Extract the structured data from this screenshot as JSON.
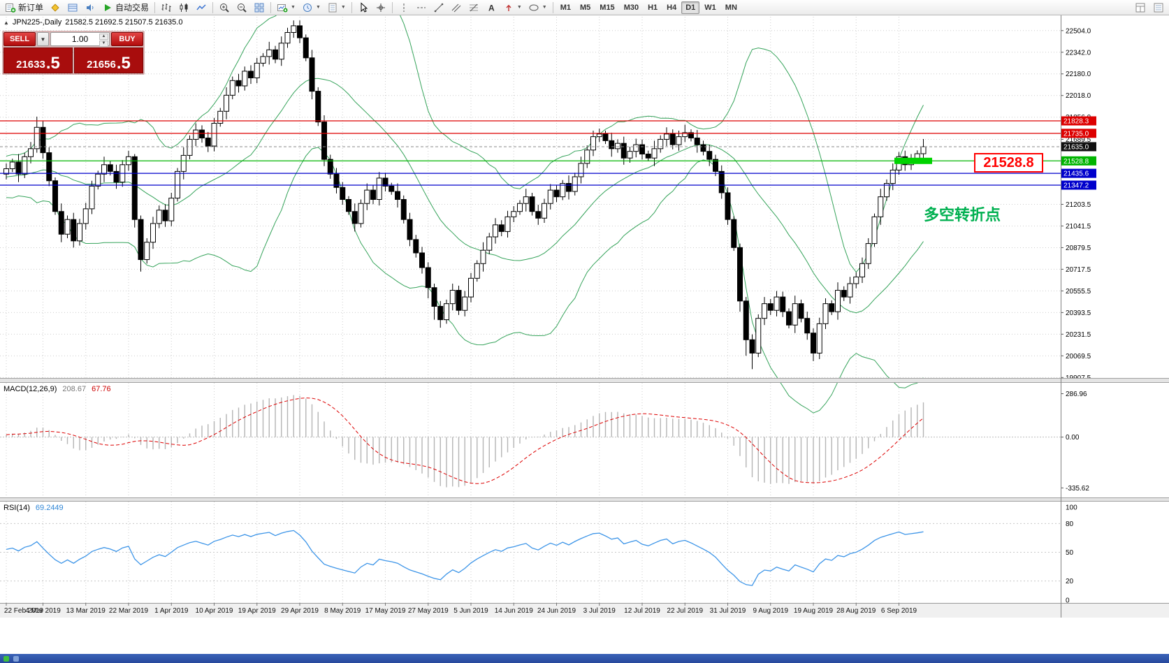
{
  "toolbar": {
    "new_order_label": "新订单",
    "autotrading_label": "自动交易",
    "timeframes": [
      "M1",
      "M5",
      "M15",
      "M30",
      "H1",
      "H4",
      "D1",
      "W1",
      "MN"
    ],
    "active_timeframe": "D1"
  },
  "chart": {
    "symbol_period_label": "JPN225-,Daily",
    "ohlc_values": "21582.5 21692.5 21507.5 21635.0"
  },
  "trade_panel": {
    "sell_label": "SELL",
    "buy_label": "BUY",
    "volume": "1.00",
    "sell_price": "21633.5",
    "buy_price": "21656.5"
  },
  "annotations": {
    "price_box_text": "21528.8",
    "note_text": "多空转折点"
  },
  "colors": {
    "line_red": "#dd0000",
    "line_blue": "#0000cc",
    "line_green": "#00b400",
    "highlight_green": "#00d300",
    "annotation_red": "#ff0000",
    "note_green": "#00b050",
    "rsi_blue": "#3d95e8",
    "macd_signal_red": "#dd0000",
    "bollinger_green": "#35a35a"
  },
  "price_lines": [
    {
      "value": 21828.3,
      "label": "21828.3",
      "color": "#dd0000"
    },
    {
      "value": 21735.0,
      "label": "21735.0",
      "color": "#dd0000"
    },
    {
      "value": 21635.0,
      "label": "21635.0",
      "color": "#111111",
      "style": "current"
    },
    {
      "value": 21528.8,
      "label": "21528.8",
      "color": "#00b400",
      "thick_segment": true
    },
    {
      "value": 21435.6,
      "label": "21435.6",
      "color": "#0000cc"
    },
    {
      "value": 21347.2,
      "label": "21347.2",
      "color": "#0000cc"
    }
  ],
  "macd": {
    "header": "MACD(12,26,9)",
    "value_main": "208.67",
    "value_signal": "67.76",
    "axis": [
      "286.96",
      "0.00",
      "-335.62"
    ],
    "params": {
      "fast": 12,
      "slow": 26,
      "signal": 9
    }
  },
  "rsi": {
    "header": "RSI(14)",
    "value": "69.2449",
    "period": 14,
    "levels": [
      80,
      50,
      20
    ],
    "axis": [
      "100",
      "80",
      "50",
      "20",
      "0"
    ]
  },
  "chart_data": {
    "type": "candlestick",
    "symbol": "JPN225-",
    "timeframe": "Daily",
    "overlays": [
      "Bollinger Bands"
    ],
    "last_ohlc": {
      "open": 21582.5,
      "high": 21692.5,
      "low": 21507.5,
      "close": 21635.0
    },
    "ylim": [
      19860,
      22590
    ],
    "price_axis_ticks": [
      "22504.0",
      "22342.0",
      "22180.0",
      "22018.0",
      "21856.0",
      "21689.5",
      "21203.5",
      "21041.5",
      "20879.5",
      "20717.5",
      "20555.5",
      "20393.5",
      "20231.5",
      "20069.5",
      "19907.5"
    ],
    "x_labels": [
      [
        "22 Feb 2019",
        0
      ],
      [
        "4 Mar 2019",
        6
      ],
      [
        "13 Mar 2019",
        13
      ],
      [
        "22 Mar 2019",
        20
      ],
      [
        "1 Apr 2019",
        27
      ],
      [
        "10 Apr 2019",
        34
      ],
      [
        "19 Apr 2019",
        41
      ],
      [
        "29 Apr 2019",
        48
      ],
      [
        "8 May 2019",
        55
      ],
      [
        "17 May 2019",
        62
      ],
      [
        "27 May 2019",
        69
      ],
      [
        "5 Jun 2019",
        76
      ],
      [
        "14 Jun 2019",
        83
      ],
      [
        "24 Jun 2019",
        90
      ],
      [
        "3 Jul 2019",
        97
      ],
      [
        "12 Jul 2019",
        104
      ],
      [
        "22 Jul 2019",
        111
      ],
      [
        "31 Jul 2019",
        118
      ],
      [
        "9 Aug 2019",
        125
      ],
      [
        "19 Aug 2019",
        132
      ],
      [
        "28 Aug 2019",
        139
      ],
      [
        "6 Sep 2019",
        146
      ]
    ],
    "candles": [
      [
        21430,
        21510,
        21390,
        21470
      ],
      [
        21470,
        21545,
        21445,
        21520
      ],
      [
        21520,
        21580,
        21370,
        21430
      ],
      [
        21430,
        21590,
        21400,
        21560
      ],
      [
        21560,
        21670,
        21510,
        21620
      ],
      [
        21620,
        21860,
        21590,
        21780
      ],
      [
        21780,
        21825,
        21545,
        21590
      ],
      [
        21590,
        21630,
        21340,
        21380
      ],
      [
        21380,
        21405,
        21125,
        21150
      ],
      [
        21150,
        21210,
        20920,
        20980
      ],
      [
        20980,
        21120,
        20950,
        21090
      ],
      [
        21090,
        21140,
        20880,
        20930
      ],
      [
        20930,
        21095,
        20895,
        21060
      ],
      [
        21060,
        21215,
        21015,
        21170
      ],
      [
        21170,
        21380,
        21130,
        21340
      ],
      [
        21340,
        21455,
        21315,
        21430
      ],
      [
        21430,
        21560,
        21370,
        21500
      ],
      [
        21500,
        21530,
        21420,
        21450
      ],
      [
        21450,
        21500,
        21320,
        21370
      ],
      [
        21370,
        21535,
        21335,
        21500
      ],
      [
        21500,
        21605,
        21455,
        21560
      ],
      [
        21560,
        21580,
        21030,
        21090
      ],
      [
        21090,
        21120,
        20700,
        20790
      ],
      [
        20790,
        20950,
        20760,
        20920
      ],
      [
        20920,
        21110,
        20870,
        21060
      ],
      [
        21060,
        21195,
        21025,
        21160
      ],
      [
        21160,
        21205,
        21035,
        21080
      ],
      [
        21080,
        21290,
        21040,
        21250
      ],
      [
        21250,
        21475,
        21225,
        21450
      ],
      [
        21450,
        21630,
        21390,
        21570
      ],
      [
        21570,
        21720,
        21540,
        21690
      ],
      [
        21690,
        21810,
        21640,
        21760
      ],
      [
        21760,
        21795,
        21665,
        21700
      ],
      [
        21700,
        21745,
        21595,
        21640
      ],
      [
        21640,
        21850,
        21600,
        21810
      ],
      [
        21810,
        21925,
        21785,
        21900
      ],
      [
        21900,
        22080,
        21840,
        22020
      ],
      [
        22020,
        22160,
        21990,
        22130
      ],
      [
        22130,
        22180,
        22040,
        22090
      ],
      [
        22090,
        22235,
        22055,
        22200
      ],
      [
        22200,
        22245,
        22105,
        22150
      ],
      [
        22150,
        22300,
        22110,
        22260
      ],
      [
        22260,
        22335,
        22235,
        22310
      ],
      [
        22310,
        22420,
        22250,
        22360
      ],
      [
        22360,
        22390,
        22260,
        22290
      ],
      [
        22290,
        22460,
        22240,
        22410
      ],
      [
        22410,
        22525,
        22375,
        22490
      ],
      [
        22490,
        22580,
        22450,
        22540
      ],
      [
        22540,
        22580,
        22410,
        22450
      ],
      [
        22450,
        22475,
        22275,
        22300
      ],
      [
        22300,
        22360,
        21990,
        22050
      ],
      [
        22050,
        22080,
        21790,
        21820
      ],
      [
        21820,
        21870,
        21490,
        21540
      ],
      [
        21540,
        21575,
        21395,
        21430
      ],
      [
        21430,
        21475,
        21285,
        21330
      ],
      [
        21330,
        21370,
        21200,
        21240
      ],
      [
        21240,
        21265,
        21125,
        21150
      ],
      [
        21150,
        21210,
        21000,
        21060
      ],
      [
        21060,
        21240,
        21030,
        21210
      ],
      [
        21210,
        21360,
        21160,
        21310
      ],
      [
        21310,
        21345,
        21205,
        21240
      ],
      [
        21240,
        21445,
        21195,
        21400
      ],
      [
        21400,
        21440,
        21300,
        21340
      ],
      [
        21340,
        21365,
        21275,
        21300
      ],
      [
        21300,
        21360,
        21180,
        21240
      ],
      [
        21240,
        21270,
        21060,
        21090
      ],
      [
        21090,
        21140,
        20890,
        20940
      ],
      [
        20940,
        20975,
        20805,
        20840
      ],
      [
        20840,
        20885,
        20685,
        20730
      ],
      [
        20730,
        20770,
        20500,
        20580
      ],
      [
        20580,
        20610,
        20340,
        20440
      ],
      [
        20440,
        20480,
        20280,
        20340
      ],
      [
        20340,
        20490,
        20310,
        20460
      ],
      [
        20460,
        20610,
        20410,
        20560
      ],
      [
        20560,
        20595,
        20375,
        20410
      ],
      [
        20410,
        20555,
        20365,
        20510
      ],
      [
        20510,
        20690,
        20470,
        20650
      ],
      [
        20650,
        20785,
        20625,
        20760
      ],
      [
        20760,
        20920,
        20700,
        20860
      ],
      [
        20860,
        20990,
        20830,
        20960
      ],
      [
        20960,
        21100,
        20910,
        21050
      ],
      [
        21050,
        21085,
        20965,
        21000
      ],
      [
        21000,
        21155,
        20955,
        21110
      ],
      [
        21110,
        21190,
        21070,
        21150
      ],
      [
        21150,
        21235,
        21125,
        21210
      ],
      [
        21210,
        21320,
        21150,
        21260
      ],
      [
        21260,
        21290,
        21120,
        21150
      ],
      [
        21150,
        21200,
        21050,
        21100
      ],
      [
        21100,
        21245,
        21065,
        21210
      ],
      [
        21210,
        21355,
        21165,
        21310
      ],
      [
        21310,
        21350,
        21220,
        21260
      ],
      [
        21260,
        21385,
        21235,
        21360
      ],
      [
        21360,
        21420,
        21240,
        21300
      ],
      [
        21300,
        21440,
        21270,
        21410
      ],
      [
        21410,
        21560,
        21360,
        21510
      ],
      [
        21510,
        21645,
        21475,
        21610
      ],
      [
        21610,
        21755,
        21565,
        21710
      ],
      [
        21710,
        21770,
        21670,
        21730
      ],
      [
        21730,
        21755,
        21655,
        21680
      ],
      [
        21680,
        21740,
        21560,
        21620
      ],
      [
        21620,
        21690,
        21590,
        21660
      ],
      [
        21660,
        21710,
        21500,
        21550
      ],
      [
        21550,
        21635,
        21515,
        21600
      ],
      [
        21600,
        21695,
        21555,
        21650
      ],
      [
        21650,
        21690,
        21540,
        21580
      ],
      [
        21580,
        21605,
        21525,
        21550
      ],
      [
        21550,
        21680,
        21490,
        21620
      ],
      [
        21620,
        21720,
        21590,
        21690
      ],
      [
        21690,
        21780,
        21640,
        21730
      ],
      [
        21730,
        21765,
        21615,
        21650
      ],
      [
        21650,
        21755,
        21605,
        21710
      ],
      [
        21710,
        21800,
        21670,
        21740
      ],
      [
        21740,
        21765,
        21675,
        21700
      ],
      [
        21700,
        21760,
        21590,
        21650
      ],
      [
        21650,
        21680,
        21570,
        21600
      ],
      [
        21600,
        21650,
        21490,
        21540
      ],
      [
        21540,
        21575,
        21415,
        21450
      ],
      [
        21450,
        21495,
        21245,
        21290
      ],
      [
        21290,
        21330,
        21050,
        21090
      ],
      [
        21090,
        21115,
        20855,
        20880
      ],
      [
        20880,
        20910,
        20400,
        20480
      ],
      [
        20480,
        20510,
        20070,
        20190
      ],
      [
        20190,
        20230,
        19970,
        20090
      ],
      [
        20090,
        20380,
        20060,
        20350
      ],
      [
        20350,
        20510,
        20300,
        20460
      ],
      [
        20460,
        20495,
        20375,
        20410
      ],
      [
        20410,
        20555,
        20365,
        20510
      ],
      [
        20510,
        20550,
        20360,
        20400
      ],
      [
        20400,
        20425,
        20275,
        20300
      ],
      [
        20300,
        20520,
        20240,
        20460
      ],
      [
        20460,
        20490,
        20320,
        20350
      ],
      [
        20350,
        20400,
        20190,
        20240
      ],
      [
        20240,
        20275,
        20030,
        20090
      ],
      [
        20090,
        20355,
        20045,
        20310
      ],
      [
        20310,
        20500,
        20270,
        20460
      ],
      [
        20460,
        20485,
        20375,
        20400
      ],
      [
        20400,
        20620,
        20340,
        20560
      ],
      [
        20560,
        20590,
        20480,
        20510
      ],
      [
        20510,
        20660,
        20460,
        20610
      ],
      [
        20610,
        20695,
        20575,
        20660
      ],
      [
        20660,
        20805,
        20615,
        20760
      ],
      [
        20760,
        20950,
        20720,
        20910
      ],
      [
        20910,
        21135,
        20885,
        21110
      ],
      [
        21110,
        21320,
        21050,
        21260
      ],
      [
        21260,
        21390,
        21230,
        21360
      ],
      [
        21360,
        21510,
        21310,
        21460
      ],
      [
        21460,
        21595,
        21425,
        21560
      ],
      [
        21560,
        21605,
        21455,
        21500
      ],
      [
        21500,
        21580,
        21460,
        21540
      ],
      [
        21540,
        21607.5,
        21515,
        21582.5
      ],
      [
        21582.5,
        21692.5,
        21507.5,
        21635.0
      ]
    ]
  }
}
